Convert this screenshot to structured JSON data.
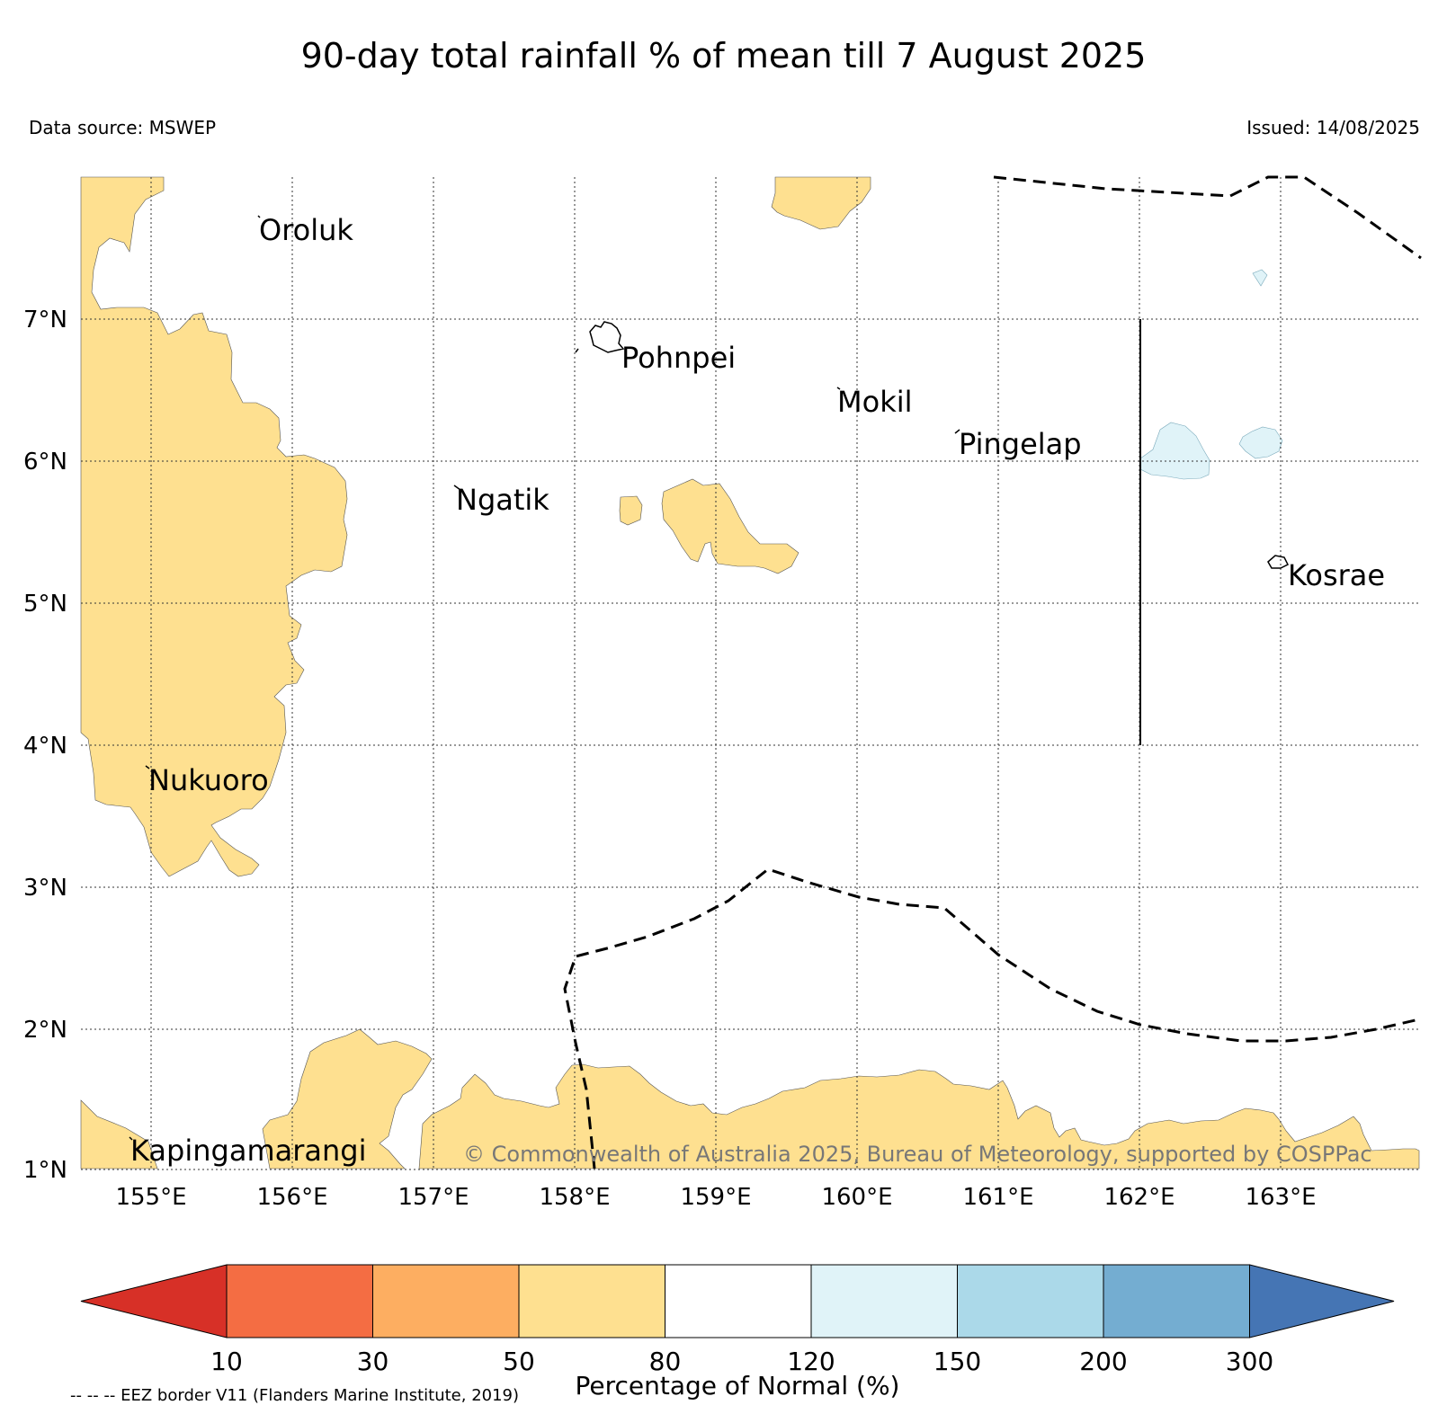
{
  "title": "90-day total rainfall % of mean till 7 August 2025",
  "data_source": "Data source: MSWEP",
  "issued": "Issued: 14/08/2025",
  "copyright": "© Commonwealth of Australia 2025, Bureau of Meteorology, supported by COSPPac",
  "eez_note": "-- -- -- EEZ border V11 (Flanders Marine Institute, 2019)",
  "map": {
    "lon_labels": [
      "155°E",
      "156°E",
      "157°E",
      "158°E",
      "159°E",
      "160°E",
      "161°E",
      "162°E",
      "163°E"
    ],
    "lat_labels": [
      "7°N",
      "6°N",
      "5°N",
      "4°N",
      "3°N",
      "2°N",
      "1°N"
    ],
    "places": [
      "Oroluk",
      "Pohnpei",
      "Mokil",
      "Pingelap",
      "Ngatik",
      "Kosrae",
      "Nukuoro",
      "Kapingamarangi"
    ],
    "colors": {
      "below_50_80": "#fee090",
      "above_120_150": "#e0f3f8",
      "eez_border": "#000000"
    }
  },
  "colorbar": {
    "title": "Percentage of Normal (%)",
    "ticks": [
      "10",
      "30",
      "50",
      "80",
      "120",
      "150",
      "200",
      "300"
    ],
    "colors": [
      "#d73027",
      "#f46d43",
      "#fdae61",
      "#fee090",
      "#ffffff",
      "#e0f3f8",
      "#abd9e9",
      "#74add1",
      "#4575b4"
    ],
    "extend": "both"
  }
}
